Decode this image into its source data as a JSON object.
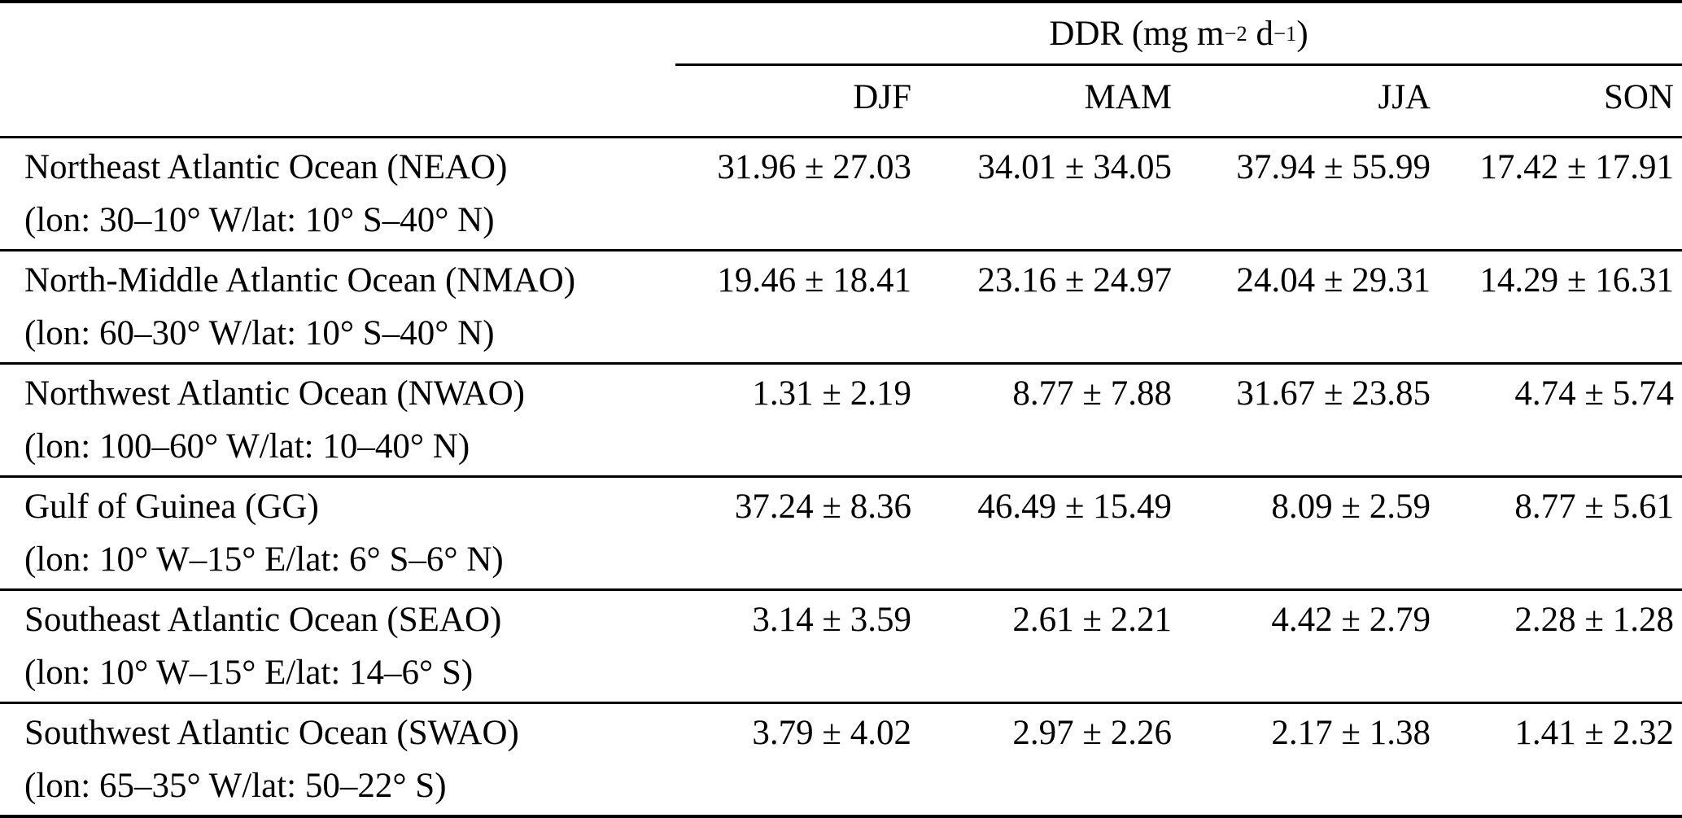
{
  "table": {
    "group_header": {
      "pre": "DDR (mg m",
      "exp1": "−2",
      "mid": " d",
      "exp2": "−1",
      "post": ")"
    },
    "seasons": [
      "DJF",
      "MAM",
      "JJA",
      "SON"
    ],
    "rows": [
      {
        "region": "Northeast Atlantic Ocean (NEAO)",
        "coords": "(lon: 30–10° W/lat: 10° S–40° N)",
        "values": [
          "31.96 ± 27.03",
          "34.01 ± 34.05",
          "37.94 ± 55.99",
          "17.42 ± 17.91"
        ]
      },
      {
        "region": "North-Middle Atlantic Ocean (NMAO)",
        "coords": "(lon: 60–30° W/lat: 10° S–40° N)",
        "values": [
          "19.46 ± 18.41",
          "23.16 ± 24.97",
          "24.04 ± 29.31",
          "14.29 ± 16.31"
        ]
      },
      {
        "region": "Northwest Atlantic Ocean (NWAO)",
        "coords": "(lon: 100–60° W/lat: 10–40° N)",
        "values": [
          "1.31 ± 2.19",
          "8.77 ± 7.88",
          "31.67 ± 23.85",
          "4.74 ± 5.74"
        ]
      },
      {
        "region": "Gulf of Guinea (GG)",
        "coords": "(lon: 10° W–15° E/lat: 6° S–6° N)",
        "values": [
          "37.24 ± 8.36",
          "46.49 ± 15.49",
          "8.09 ± 2.59",
          "8.77 ± 5.61"
        ]
      },
      {
        "region": "Southeast Atlantic Ocean (SEAO)",
        "coords": "(lon: 10° W–15° E/lat: 14–6° S)",
        "values": [
          "3.14 ± 3.59",
          "2.61 ± 2.21",
          "4.42 ± 2.79",
          "2.28 ± 1.28"
        ]
      },
      {
        "region": "Southwest Atlantic Ocean (SWAO)",
        "coords": "(lon: 65–35° W/lat: 50–22° S)",
        "values": [
          "3.79 ± 4.02",
          "2.97 ± 2.26",
          "2.17 ± 1.38",
          "1.41 ± 2.32"
        ]
      }
    ]
  },
  "colors": {
    "text": "#000000",
    "background": "#ffffff",
    "rule": "#000000"
  },
  "chart_data": {
    "type": "table",
    "title": "DDR (mg m−2 d−1)",
    "columns": [
      "Region",
      "DJF",
      "MAM",
      "JJA",
      "SON"
    ],
    "series": [
      {
        "name": "Northeast Atlantic Ocean (NEAO)",
        "mean": [
          31.96,
          34.01,
          37.94,
          17.42
        ],
        "sd": [
          27.03,
          34.05,
          55.99,
          17.91
        ]
      },
      {
        "name": "North-Middle Atlantic Ocean (NMAO)",
        "mean": [
          19.46,
          23.16,
          24.04,
          14.29
        ],
        "sd": [
          18.41,
          24.97,
          29.31,
          16.31
        ]
      },
      {
        "name": "Northwest Atlantic Ocean (NWAO)",
        "mean": [
          1.31,
          8.77,
          31.67,
          4.74
        ],
        "sd": [
          2.19,
          7.88,
          23.85,
          5.74
        ]
      },
      {
        "name": "Gulf of Guinea (GG)",
        "mean": [
          37.24,
          46.49,
          8.09,
          8.77
        ],
        "sd": [
          8.36,
          15.49,
          2.59,
          5.61
        ]
      },
      {
        "name": "Southeast Atlantic Ocean (SEAO)",
        "mean": [
          3.14,
          2.61,
          4.42,
          2.28
        ],
        "sd": [
          3.59,
          2.21,
          2.79,
          1.28
        ]
      },
      {
        "name": "Southwest Atlantic Ocean (SWAO)",
        "mean": [
          3.79,
          2.97,
          2.17,
          1.41
        ],
        "sd": [
          4.02,
          2.26,
          1.38,
          2.32
        ]
      }
    ]
  }
}
